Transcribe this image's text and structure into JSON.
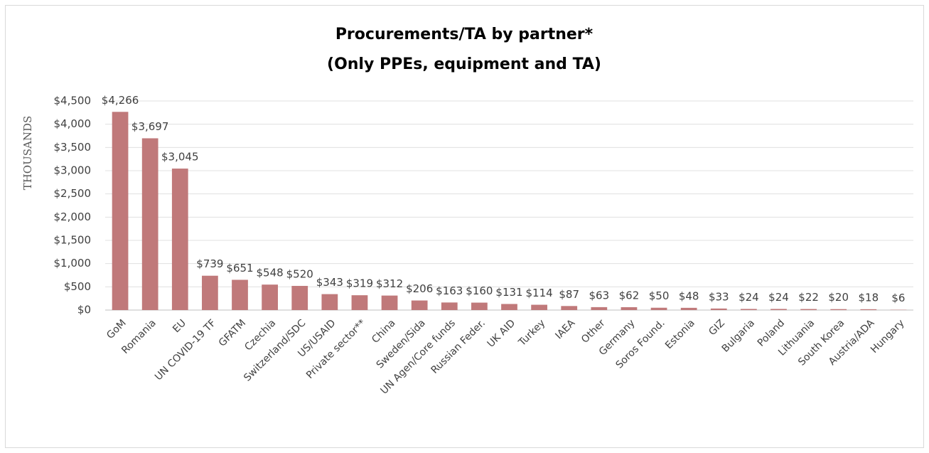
{
  "chart_data": {
    "type": "bar",
    "title": "Procurements/TA by partner*",
    "subtitle": "(Only PPEs, equipment and TA)",
    "y_label": "THOUSANDS",
    "categories": [
      "GoM",
      "Romania",
      "EU",
      "UN COVID-19 TF",
      "GFATM",
      "Czechia",
      "Switzerland/SDC",
      "US/USAID",
      "Private sector**",
      "China",
      "Sweden/Sida",
      "UN Agen/Core funds",
      "Russian Feder.",
      "UK AID",
      "Turkey",
      "IAEA",
      "Other",
      "Germany",
      "Soros Found.",
      "Estonia",
      "GIZ",
      "Bulgaria",
      "Poland",
      "Lithuania",
      "South Korea",
      "Austria/ADA",
      "Hungary"
    ],
    "values": [
      4266,
      3697,
      3045,
      739,
      651,
      548,
      520,
      343,
      319,
      312,
      206,
      163,
      160,
      131,
      114,
      87,
      63,
      62,
      50,
      48,
      33,
      24,
      24,
      22,
      20,
      18,
      6
    ],
    "value_labels": [
      "$4,266",
      "$3,697",
      "$3,045",
      "$739",
      "$651",
      "$548",
      "$520",
      "$343",
      "$319",
      "$312",
      "$206",
      "$163",
      "$160",
      "$131",
      "$114",
      "$87",
      "$63",
      "$62",
      "$50",
      "$48",
      "$33",
      "$24",
      "$24",
      "$22",
      "$20",
      "$18",
      "$6"
    ],
    "color": "#c0797a",
    "ylim": [
      0,
      4500
    ],
    "yticks": [
      {
        "value": 0,
        "label": "$0"
      },
      {
        "value": 500,
        "label": "$500"
      },
      {
        "value": 1000,
        "label": "$1,000"
      },
      {
        "value": 1500,
        "label": "$1,500"
      },
      {
        "value": 2000,
        "label": "$2,000"
      },
      {
        "value": 2500,
        "label": "$2,500"
      },
      {
        "value": 3000,
        "label": "$3,000"
      },
      {
        "value": 3500,
        "label": "$3,500"
      },
      {
        "value": 4000,
        "label": "$4,000"
      },
      {
        "value": 4500,
        "label": "$4,500"
      }
    ],
    "grid": true
  }
}
